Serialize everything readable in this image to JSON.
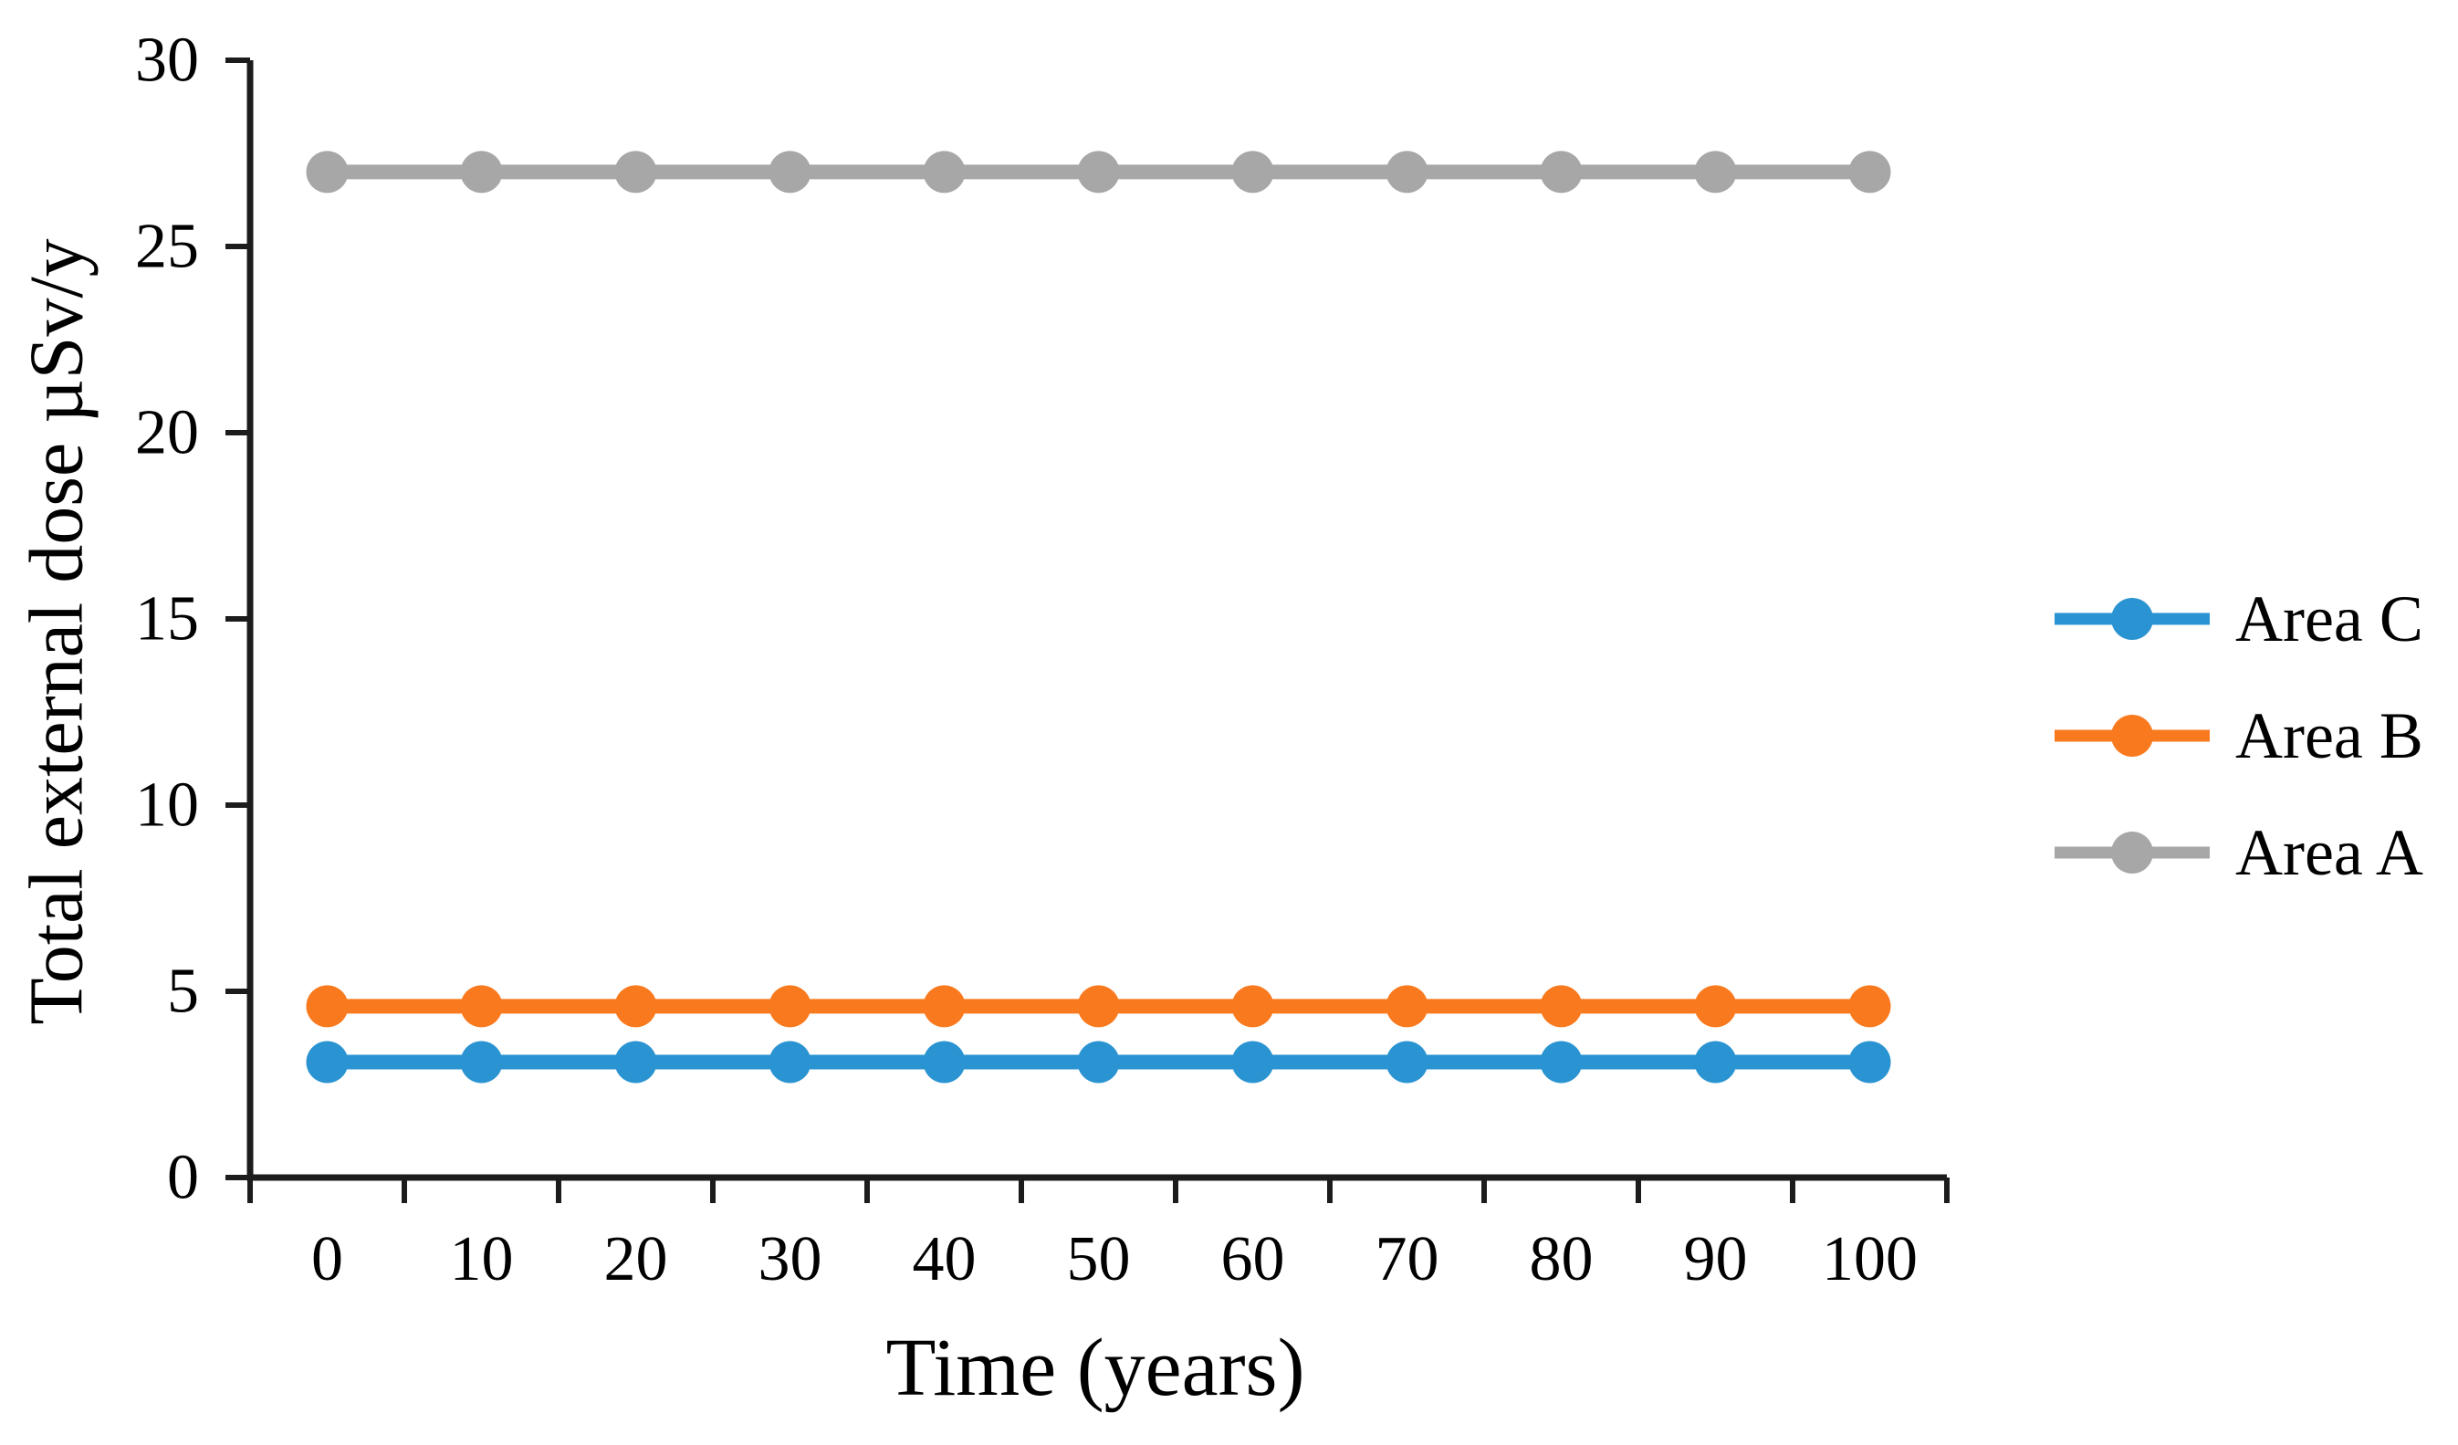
{
  "chart_data": {
    "type": "line",
    "title": "",
    "xlabel": "Time (years)",
    "ylabel": "Total external dose µSv/y",
    "x": [
      0,
      10,
      20,
      30,
      40,
      50,
      60,
      70,
      80,
      90,
      100
    ],
    "xtick_labels": [
      "0",
      "10",
      "20",
      "30",
      "40",
      "50",
      "60",
      "70",
      "80",
      "90",
      "100"
    ],
    "yticks": [
      0,
      5,
      10,
      15,
      20,
      25,
      30
    ],
    "ylim": [
      0,
      30
    ],
    "xlim_categories": 11,
    "grid": false,
    "marker": "circle",
    "axis_color": "#1c1c1c",
    "legend_position": "right-center",
    "series": [
      {
        "name": "Area A",
        "color": "#a7a7a7",
        "values": [
          27,
          27,
          27,
          27,
          27,
          27,
          27,
          27,
          27,
          27,
          27
        ]
      },
      {
        "name": "Area B",
        "color": "#f97a1e",
        "values": [
          4.6,
          4.6,
          4.6,
          4.6,
          4.6,
          4.6,
          4.6,
          4.6,
          4.6,
          4.6,
          4.6
        ]
      },
      {
        "name": "Area C",
        "color": "#2a93d1",
        "values": [
          3.1,
          3.1,
          3.1,
          3.1,
          3.1,
          3.1,
          3.1,
          3.1,
          3.1,
          3.1,
          3.1
        ]
      }
    ],
    "legend": [
      {
        "label": "Area C",
        "color": "#2a93d1"
      },
      {
        "label": "Area B",
        "color": "#f97a1e"
      },
      {
        "label": "Area A",
        "color": "#a7a7a7"
      }
    ]
  }
}
